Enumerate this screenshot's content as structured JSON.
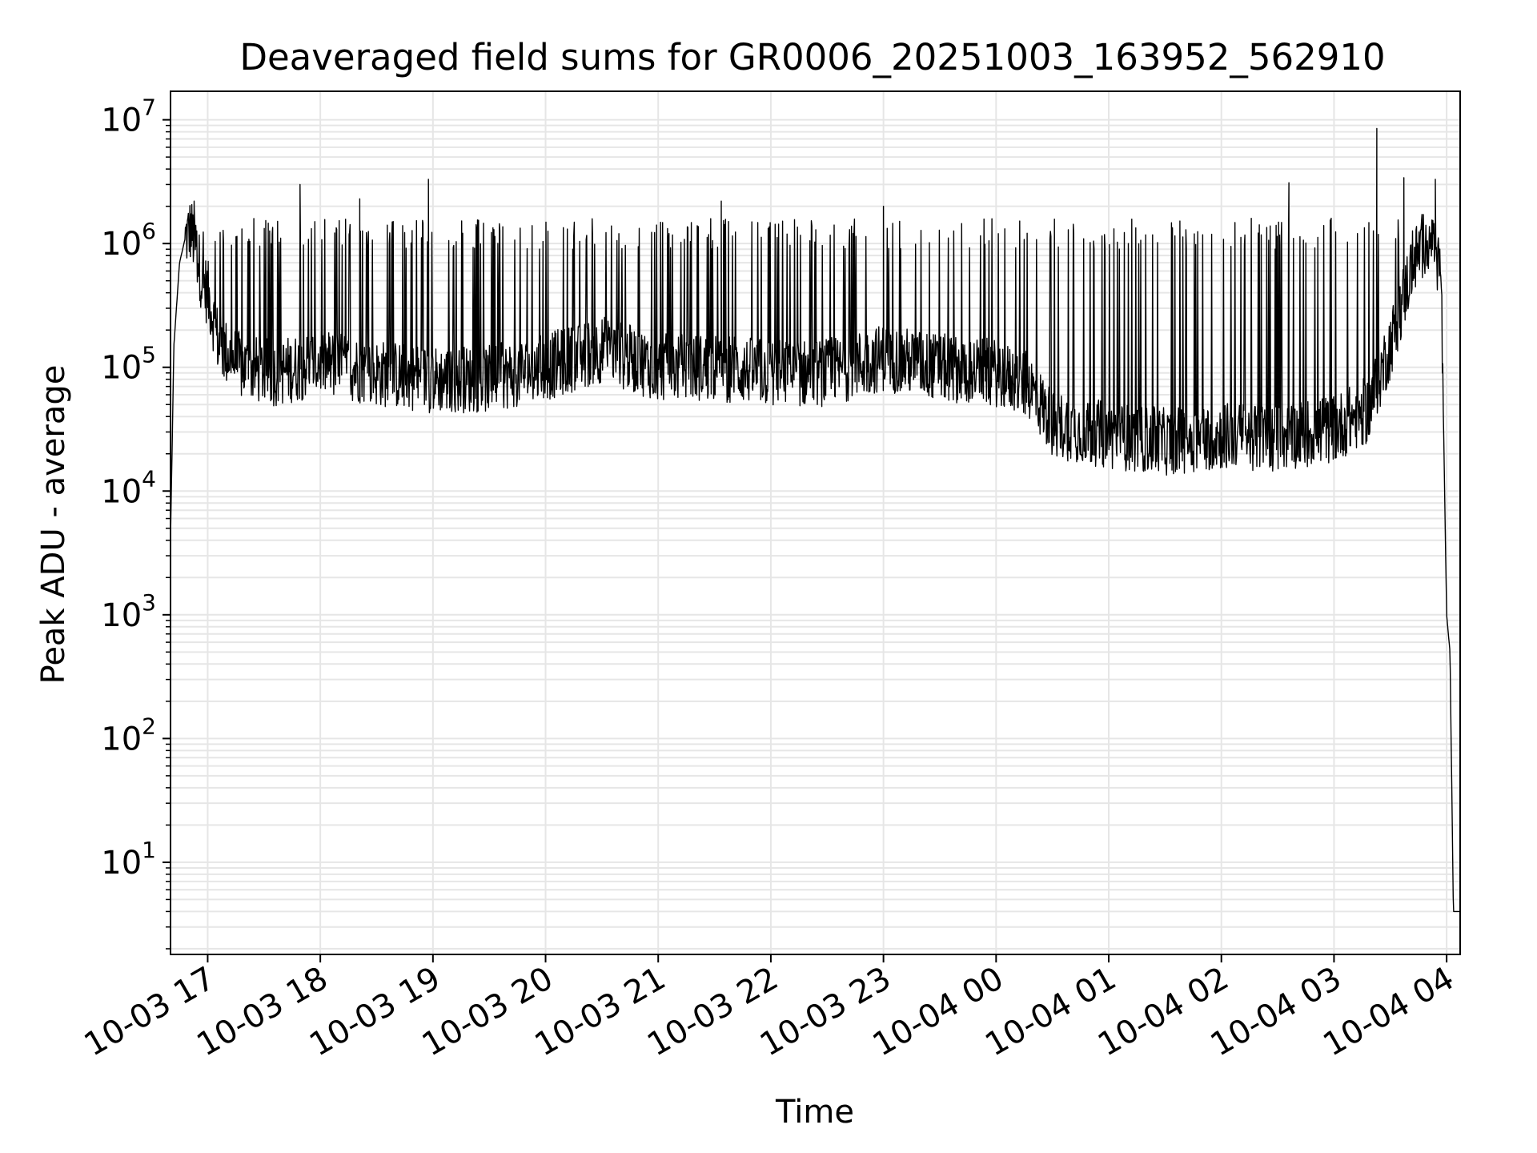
{
  "chart_data": {
    "type": "line",
    "title": "Deaveraged field sums for GR0006_20251003_163952_562910",
    "xlabel": "Time",
    "ylabel": "Peak ADU - average",
    "yscale": "log",
    "ylim": [
      1.8,
      17000000
    ],
    "xlim_hours_since_10_03_17_00": [
      -0.33,
      11.12
    ],
    "grid": true,
    "y_ticks": [
      {
        "base": "10",
        "exp": "1",
        "value": 10
      },
      {
        "base": "10",
        "exp": "2",
        "value": 100
      },
      {
        "base": "10",
        "exp": "3",
        "value": 1000
      },
      {
        "base": "10",
        "exp": "4",
        "value": 10000
      },
      {
        "base": "10",
        "exp": "5",
        "value": 100000
      },
      {
        "base": "10",
        "exp": "6",
        "value": 1000000
      },
      {
        "base": "10",
        "exp": "7",
        "value": 10000000
      }
    ],
    "x_ticks": [
      {
        "label": "10-03 17",
        "hour": 0
      },
      {
        "label": "10-03 18",
        "hour": 1
      },
      {
        "label": "10-03 19",
        "hour": 2
      },
      {
        "label": "10-03 20",
        "hour": 3
      },
      {
        "label": "10-03 21",
        "hour": 4
      },
      {
        "label": "10-03 22",
        "hour": 5
      },
      {
        "label": "10-03 23",
        "hour": 6
      },
      {
        "label": "10-04 00",
        "hour": 7
      },
      {
        "label": "10-04 01",
        "hour": 8
      },
      {
        "label": "10-04 02",
        "hour": 9
      },
      {
        "label": "10-04 03",
        "hour": 10
      },
      {
        "label": "10-04 04",
        "hour": 11
      }
    ],
    "series": [
      {
        "name": "field sums",
        "color": "#000000",
        "x_hours": [
          -0.33,
          -0.3,
          -0.25,
          -0.2,
          -0.15,
          -0.1,
          -0.05,
          0.0,
          0.05,
          0.1,
          0.3,
          0.6,
          1.0,
          1.5,
          2.0,
          2.5,
          3.0,
          3.5,
          4.0,
          4.5,
          5.0,
          5.5,
          6.0,
          6.5,
          7.0,
          7.3,
          7.5,
          7.7,
          8.0,
          8.5,
          9.0,
          9.5,
          10.0,
          10.3,
          10.5,
          10.7,
          10.85,
          10.95,
          11.0,
          11.03,
          11.06,
          11.08,
          11.12
        ],
        "baseline": [
          4000,
          150000,
          700000,
          1100000,
          1300000,
          900000,
          500000,
          400000,
          250000,
          150000,
          100000,
          90000,
          110000,
          90000,
          80000,
          80000,
          100000,
          140000,
          100000,
          100000,
          90000,
          90000,
          120000,
          100000,
          90000,
          70000,
          35000,
          32000,
          28000,
          25000,
          28000,
          27000,
          32000,
          45000,
          150000,
          700000,
          1200000,
          600000,
          1000,
          500,
          4,
          4,
          4
        ],
        "spikes": [
          {
            "hour": -0.12,
            "value": 2200000
          },
          {
            "hour": 0.82,
            "value": 3000000
          },
          {
            "hour": 1.35,
            "value": 2300000
          },
          {
            "hour": 1.96,
            "value": 3300000
          },
          {
            "hour": 4.56,
            "value": 2200000
          },
          {
            "hour": 6.0,
            "value": 2000000
          },
          {
            "hour": 9.6,
            "value": 3100000
          },
          {
            "hour": 10.38,
            "value": 8500000
          },
          {
            "hour": 10.62,
            "value": 3400000
          },
          {
            "hour": 10.9,
            "value": 3300000
          }
        ],
        "typical_spike_peak": 1200000
      }
    ]
  }
}
